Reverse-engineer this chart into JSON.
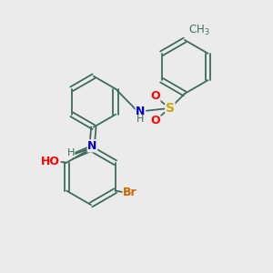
{
  "bg_color": "#ebebeb",
  "atom_colors": {
    "C": "#3d6b5e",
    "N": "#0000cc",
    "O": "#ff0000",
    "S": "#ccaa00",
    "Br": "#cc6600",
    "H": "#3d6b5e"
  },
  "bond_color": "#3d6b5e",
  "font_size": 9,
  "lw": 1.3
}
